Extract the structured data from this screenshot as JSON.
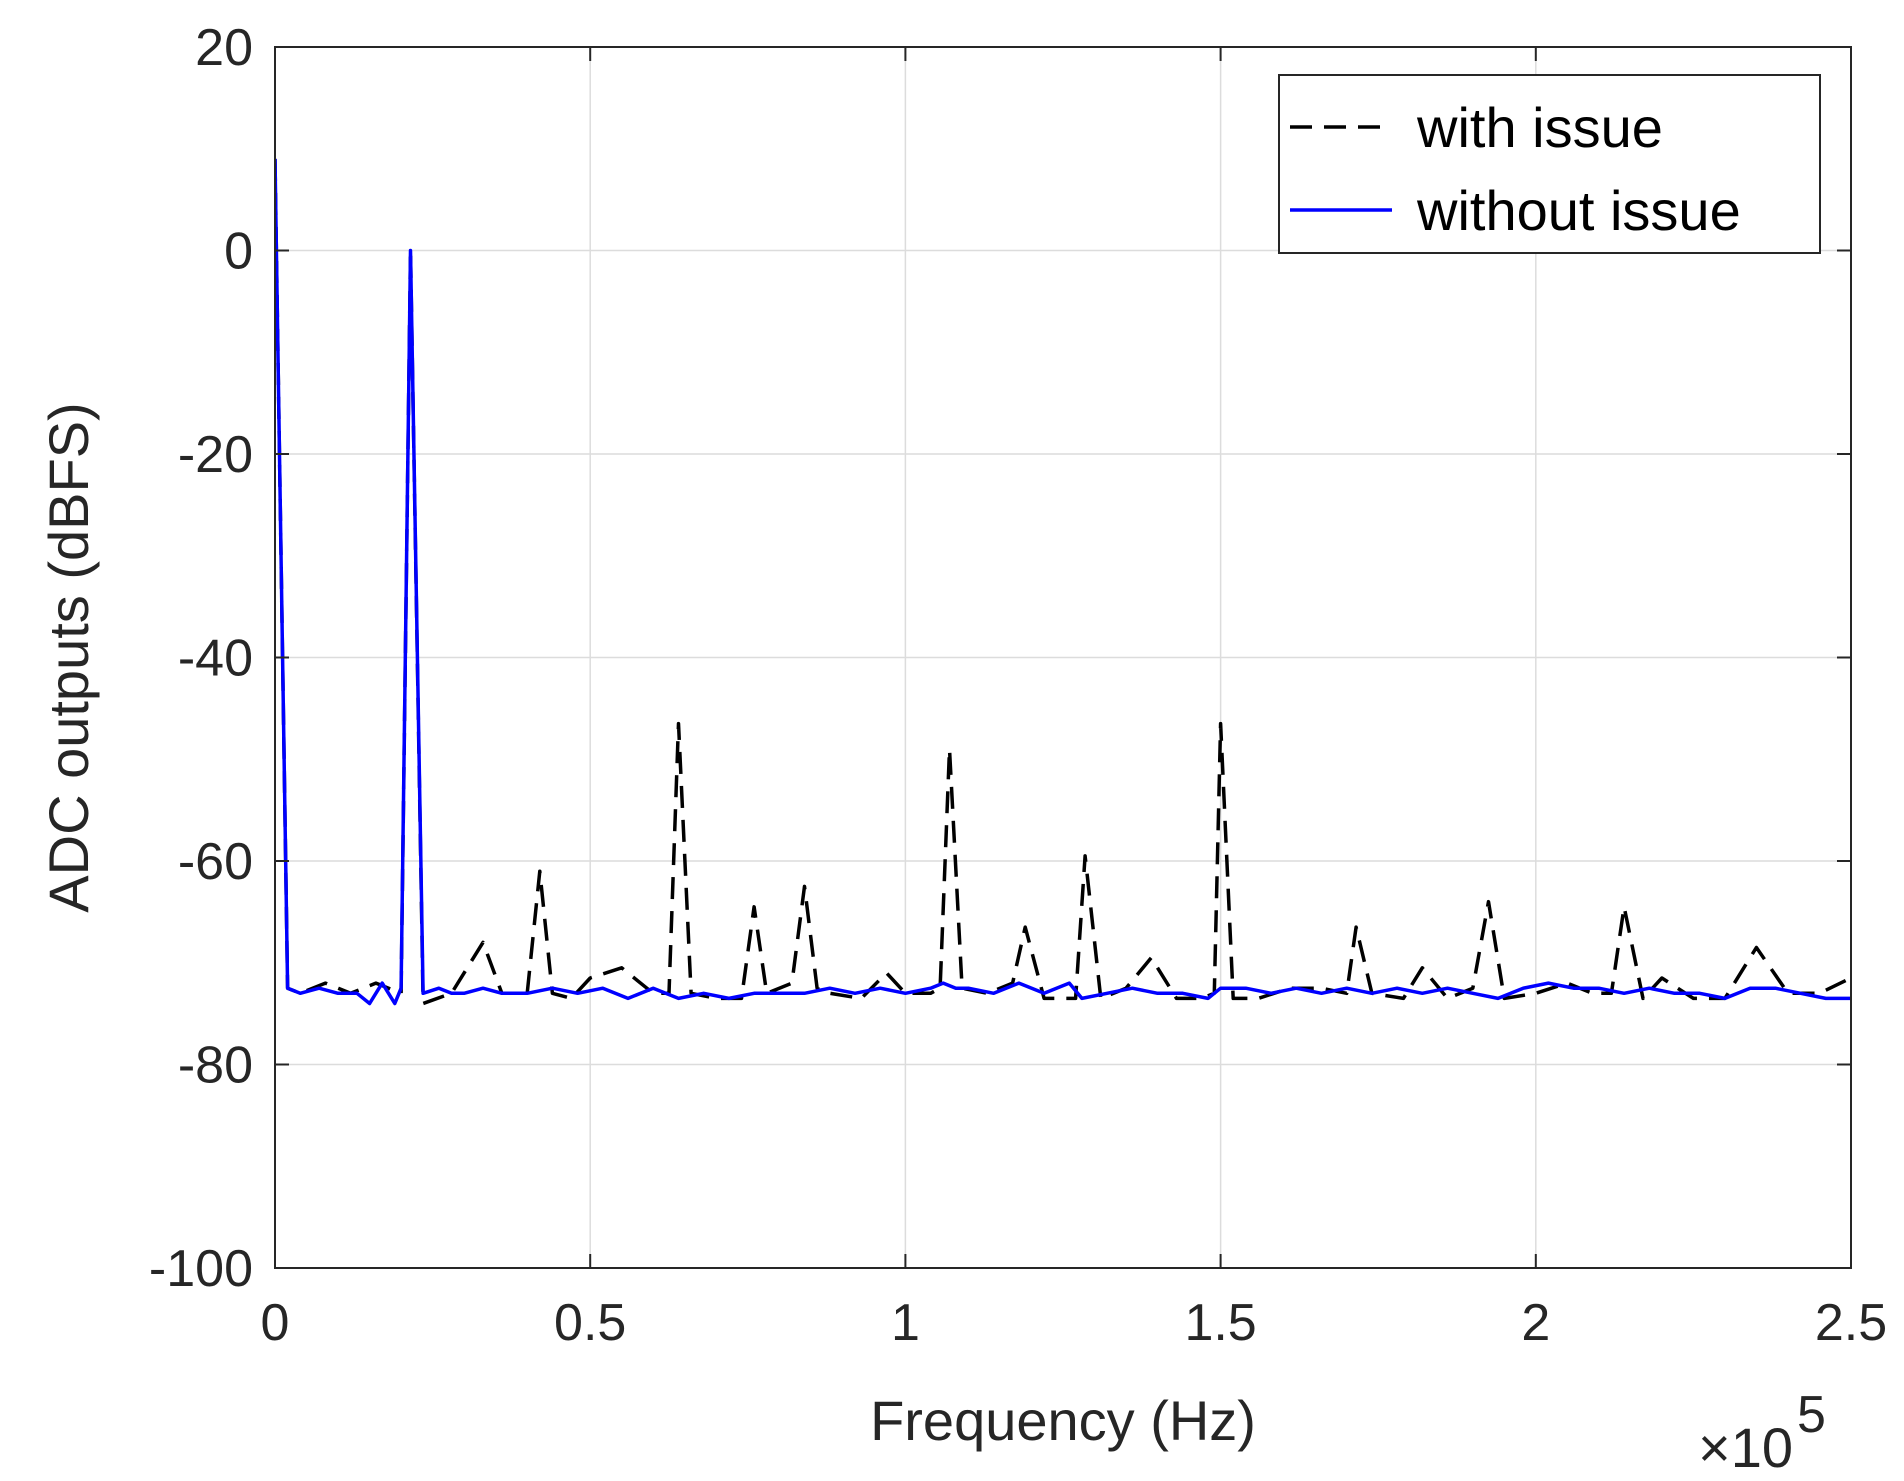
{
  "chart_data": {
    "type": "line",
    "xlabel": "Frequency (Hz)",
    "ylabel": "ADC outputs (dBFS)",
    "x_exponent_label": "×10",
    "x_exponent_power": "5",
    "xlim": [
      0,
      2.5
    ],
    "ylim": [
      -100,
      20
    ],
    "x_scale_note": "x values in units of 1e5 Hz",
    "xticks": [
      0,
      0.5,
      1,
      1.5,
      2,
      2.5
    ],
    "xtick_labels": [
      "0",
      "0.5",
      "1",
      "1.5",
      "2",
      "2.5"
    ],
    "yticks": [
      20,
      0,
      -20,
      -40,
      -60,
      -80,
      -100
    ],
    "ytick_labels": [
      "20",
      "0",
      "-20",
      "-40",
      "-60",
      "-80",
      "-100"
    ],
    "grid": true,
    "legend_position": "top-right",
    "series": [
      {
        "name": "with issue",
        "color": "#000000",
        "style": "dashed",
        "x": [
          0,
          0.02,
          0.04,
          0.08,
          0.12,
          0.16,
          0.2,
          0.215,
          0.235,
          0.28,
          0.33,
          0.36,
          0.4,
          0.42,
          0.44,
          0.47,
          0.5,
          0.55,
          0.6,
          0.625,
          0.64,
          0.66,
          0.7,
          0.74,
          0.76,
          0.78,
          0.82,
          0.84,
          0.86,
          0.88,
          0.93,
          0.97,
          1.0,
          1.04,
          1.055,
          1.07,
          1.09,
          1.13,
          1.17,
          1.19,
          1.22,
          1.27,
          1.285,
          1.31,
          1.35,
          1.39,
          1.43,
          1.47,
          1.49,
          1.5,
          1.52,
          1.56,
          1.61,
          1.66,
          1.7,
          1.715,
          1.74,
          1.79,
          1.82,
          1.86,
          1.9,
          1.925,
          1.95,
          2.0,
          2.05,
          2.09,
          2.12,
          2.14,
          2.17,
          2.2,
          2.25,
          2.3,
          2.35,
          2.4,
          2.45,
          2.5
        ],
        "y": [
          9,
          -72.5,
          -73,
          -72,
          -73,
          -72,
          -73,
          0,
          -74,
          -73,
          -68,
          -73,
          -73,
          -61,
          -73,
          -73.5,
          -71.5,
          -70.5,
          -73,
          -73,
          -46.5,
          -73,
          -73.5,
          -73.5,
          -64.5,
          -73,
          -72,
          -62.5,
          -72.5,
          -73,
          -73.5,
          -71,
          -73,
          -73,
          -72.5,
          -49,
          -72.5,
          -73,
          -72,
          -66.5,
          -73.5,
          -73.5,
          -59.5,
          -73.5,
          -72.5,
          -69.5,
          -73.5,
          -73.5,
          -73,
          -46.5,
          -73.5,
          -73.5,
          -72.5,
          -72.5,
          -73,
          -66.5,
          -73,
          -73.5,
          -70.5,
          -73.5,
          -72.5,
          -64,
          -73.5,
          -73,
          -72,
          -73,
          -73,
          -64.5,
          -73.5,
          -71.5,
          -73.5,
          -73.5,
          -68.5,
          -73,
          -73,
          -71.5
        ]
      },
      {
        "name": "without issue",
        "color": "#0000ff",
        "style": "solid",
        "x": [
          0,
          0.02,
          0.04,
          0.07,
          0.1,
          0.13,
          0.15,
          0.17,
          0.19,
          0.2,
          0.215,
          0.235,
          0.26,
          0.28,
          0.3,
          0.33,
          0.36,
          0.4,
          0.44,
          0.48,
          0.52,
          0.56,
          0.6,
          0.64,
          0.68,
          0.72,
          0.76,
          0.8,
          0.84,
          0.88,
          0.92,
          0.96,
          1.0,
          1.04,
          1.06,
          1.08,
          1.1,
          1.14,
          1.18,
          1.22,
          1.26,
          1.28,
          1.32,
          1.36,
          1.4,
          1.44,
          1.48,
          1.5,
          1.54,
          1.58,
          1.62,
          1.66,
          1.7,
          1.74,
          1.78,
          1.82,
          1.86,
          1.9,
          1.94,
          1.98,
          2.02,
          2.06,
          2.1,
          2.14,
          2.18,
          2.22,
          2.26,
          2.3,
          2.34,
          2.38,
          2.42,
          2.46,
          2.5
        ],
        "y": [
          9,
          -72.5,
          -73,
          -72.5,
          -73,
          -73,
          -74,
          -72,
          -74,
          -72.5,
          0,
          -73,
          -72.5,
          -73,
          -73,
          -72.5,
          -73,
          -73,
          -72.5,
          -73,
          -72.5,
          -73.5,
          -72.5,
          -73.5,
          -73,
          -73.5,
          -73,
          -73,
          -73,
          -72.5,
          -73,
          -72.5,
          -73,
          -72.5,
          -72,
          -72.5,
          -72.5,
          -73,
          -72,
          -73,
          -72,
          -73.5,
          -73,
          -72.5,
          -73,
          -73,
          -73.5,
          -72.5,
          -72.5,
          -73,
          -72.5,
          -73,
          -72.5,
          -73,
          -72.5,
          -73,
          -72.5,
          -73,
          -73.5,
          -72.5,
          -72,
          -72.5,
          -72.5,
          -73,
          -72.5,
          -73,
          -73,
          -73.5,
          -72.5,
          -72.5,
          -73,
          -73.5,
          -73.5
        ]
      }
    ]
  }
}
